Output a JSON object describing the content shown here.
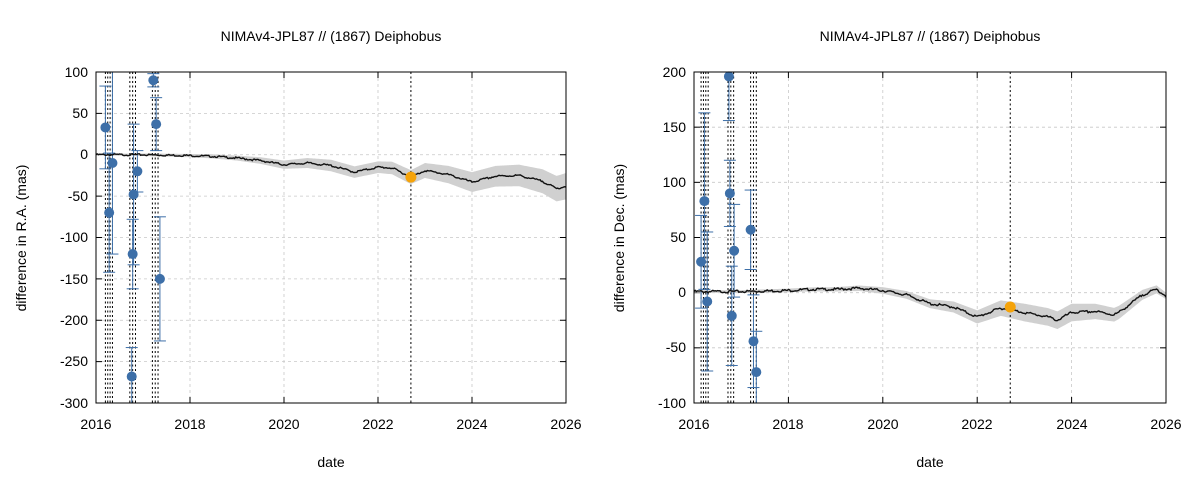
{
  "charts": [
    {
      "title": "NIMAv4-JPL87 // (1867) Deiphobus",
      "xlabel": "date",
      "ylabel": "difference in R.A. (mas)",
      "xlim": [
        2016,
        2026
      ],
      "ylim": [
        -300,
        100
      ],
      "xticks": [
        "2016",
        "2018",
        "2020",
        "2022",
        "2024",
        "2026"
      ],
      "yticks": [
        "100",
        "50",
        "0",
        "-50",
        "-100",
        "-150",
        "-200",
        "-250",
        "-300"
      ]
    },
    {
      "title": "NIMAv4-JPL87 // (1867) Deiphobus",
      "xlabel": "date",
      "ylabel": "difference in Dec. (mas)",
      "xlim": [
        2016,
        2026
      ],
      "ylim": [
        -100,
        200
      ],
      "xticks": [
        "2016",
        "2018",
        "2020",
        "2022",
        "2024",
        "2026"
      ],
      "yticks": [
        "200",
        "150",
        "100",
        "50",
        "0",
        "-50",
        "-100"
      ]
    }
  ],
  "chart_data": [
    {
      "type": "scatter",
      "title": "NIMAv4-JPL87 // (1867) Deiphobus",
      "xlabel": "date",
      "ylabel": "difference in R.A. (mas)",
      "xlim": [
        2016,
        2026
      ],
      "ylim": [
        -300,
        100
      ],
      "grid": true,
      "vlines": [
        2016.2,
        2016.25,
        2016.3,
        2016.35,
        2016.72,
        2016.78,
        2016.84,
        2017.2,
        2017.26,
        2017.32,
        2022.7
      ],
      "observations": [
        {
          "x": 2016.2,
          "y": 33,
          "err": 50
        },
        {
          "x": 2016.28,
          "y": -70,
          "err": 72
        },
        {
          "x": 2016.35,
          "y": -10,
          "err": 110
        },
        {
          "x": 2016.76,
          "y": -268,
          "err": 35
        },
        {
          "x": 2016.78,
          "y": -120,
          "err": 42
        },
        {
          "x": 2016.8,
          "y": -48,
          "err": 85
        },
        {
          "x": 2016.88,
          "y": -20,
          "err": 25
        },
        {
          "x": 2017.22,
          "y": 90,
          "err": 8
        },
        {
          "x": 2017.28,
          "y": 37,
          "err": 32
        },
        {
          "x": 2017.36,
          "y": -150,
          "err": 75
        }
      ],
      "highlight": {
        "x": 2022.7,
        "y": -27,
        "color": "#f5a30a"
      },
      "model_line": {
        "x": [
          2016,
          2017,
          2018,
          2018.5,
          2019,
          2019.5,
          2020,
          2020.5,
          2021,
          2021.5,
          2022,
          2022.3,
          2022.7,
          2023,
          2023.5,
          2024,
          2024.5,
          2025,
          2025.5,
          2025.8,
          2026
        ],
        "y": [
          0,
          0,
          -1,
          -2,
          -4,
          -7,
          -12,
          -10,
          -13,
          -21,
          -15,
          -16,
          -27,
          -19,
          -24,
          -33,
          -26,
          -25,
          -32,
          -41,
          -38
        ]
      },
      "uncertainty_band_halfwidth": {
        "x": [
          2016,
          2018,
          2019,
          2020,
          2021,
          2022,
          2023,
          2024,
          2025,
          2026
        ],
        "y": [
          1,
          2,
          3,
          5,
          7,
          7,
          9,
          12,
          13,
          16
        ]
      },
      "point_color": "#3d6fa8",
      "band_color": "#d0d0d0"
    },
    {
      "type": "scatter",
      "title": "NIMAv4-JPL87 // (1867) Deiphobus",
      "xlabel": "date",
      "ylabel": "difference in Dec. (mas)",
      "xlim": [
        2016,
        2026
      ],
      "ylim": [
        -100,
        200
      ],
      "grid": true,
      "vlines": [
        2016.15,
        2016.2,
        2016.25,
        2016.3,
        2016.72,
        2016.78,
        2016.84,
        2017.2,
        2017.26,
        2017.32,
        2022.7
      ],
      "observations": [
        {
          "x": 2016.15,
          "y": 28,
          "err": 42
        },
        {
          "x": 2016.22,
          "y": 83,
          "err": 80
        },
        {
          "x": 2016.28,
          "y": -8,
          "err": 63
        },
        {
          "x": 2016.74,
          "y": 196,
          "err": 40
        },
        {
          "x": 2016.76,
          "y": 90,
          "err": 30
        },
        {
          "x": 2016.8,
          "y": -21,
          "err": 45
        },
        {
          "x": 2016.85,
          "y": 38,
          "err": 42
        },
        {
          "x": 2017.2,
          "y": 57,
          "err": 36
        },
        {
          "x": 2017.26,
          "y": -44,
          "err": 42
        },
        {
          "x": 2017.32,
          "y": -72,
          "err": 37
        }
      ],
      "highlight": {
        "x": 2022.7,
        "y": -13,
        "color": "#f5a30a"
      },
      "model_line": {
        "x": [
          2016,
          2017,
          2018,
          2018.5,
          2019,
          2019.5,
          2020,
          2020.5,
          2021,
          2021.5,
          2022,
          2022.5,
          2023,
          2023.5,
          2023.7,
          2024,
          2024.5,
          2024.9,
          2025,
          2025.5,
          2025.8,
          2026
        ],
        "y": [
          1,
          1,
          2,
          3,
          3,
          4,
          2,
          -2,
          -10,
          -13,
          -22,
          -14,
          -18,
          -22,
          -25,
          -18,
          -17,
          -20,
          -18,
          -2,
          3,
          -3
        ]
      },
      "uncertainty_band_halfwidth": {
        "x": [
          2016,
          2019,
          2020,
          2021,
          2022,
          2023,
          2024,
          2025,
          2026
        ],
        "y": [
          1,
          2,
          3,
          4,
          6,
          8,
          8,
          6,
          3
        ]
      },
      "point_color": "#3d6fa8",
      "band_color": "#d0d0d0"
    }
  ]
}
